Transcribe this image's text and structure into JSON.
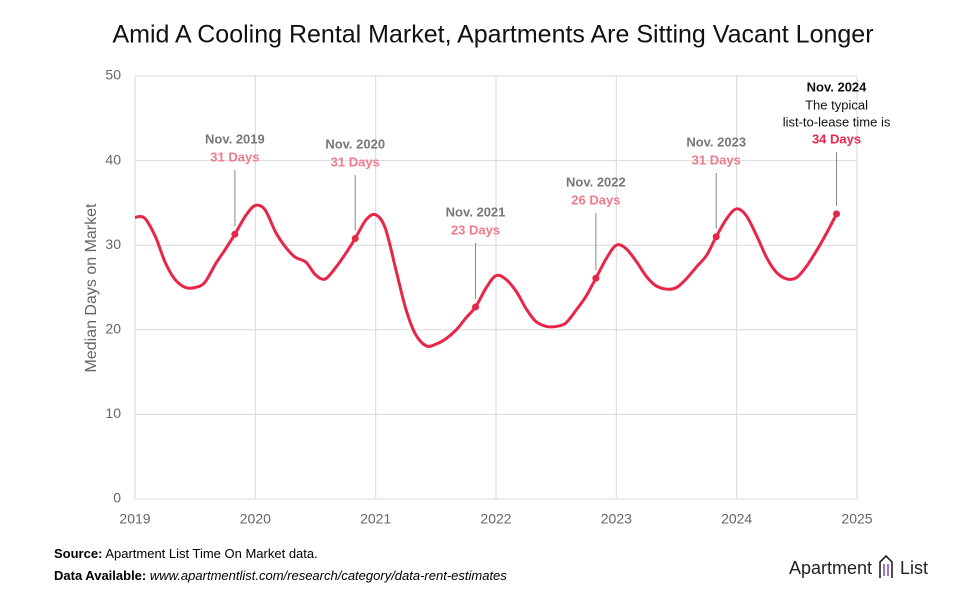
{
  "chart_data": {
    "type": "line",
    "title": "Amid A Cooling Rental Market, Apartments Are Sitting Vacant Longer",
    "y_label": "Median Days on Market",
    "x": [
      2019,
      2019.08,
      2019.17,
      2019.25,
      2019.33,
      2019.42,
      2019.5,
      2019.58,
      2019.67,
      2019.75,
      2019.83,
      2019.92,
      2020,
      2020.08,
      2020.17,
      2020.25,
      2020.33,
      2020.42,
      2020.5,
      2020.58,
      2020.67,
      2020.75,
      2020.83,
      2020.92,
      2021,
      2021.08,
      2021.17,
      2021.25,
      2021.33,
      2021.42,
      2021.5,
      2021.58,
      2021.67,
      2021.75,
      2021.83,
      2021.92,
      2022,
      2022.08,
      2022.17,
      2022.25,
      2022.33,
      2022.42,
      2022.5,
      2022.58,
      2022.67,
      2022.75,
      2022.83,
      2022.92,
      2023,
      2023.08,
      2023.17,
      2023.25,
      2023.33,
      2023.42,
      2023.5,
      2023.58,
      2023.67,
      2023.75,
      2023.83,
      2023.92,
      2024,
      2024.08,
      2024.17,
      2024.25,
      2024.33,
      2024.42,
      2024.5,
      2024.58,
      2024.67,
      2024.75,
      2024.83
    ],
    "series": [
      {
        "name": "Median Days on Market",
        "color": "#e8264a",
        "values": [
          33.3,
          33.2,
          31,
          28,
          26,
          25,
          25,
          25.6,
          27.8,
          29.5,
          31.3,
          33.5,
          34.7,
          34.2,
          31.5,
          29.8,
          28.6,
          28,
          26.5,
          26,
          27.4,
          29,
          30.8,
          33,
          33.6,
          32,
          27,
          22.5,
          19.5,
          18.1,
          18.3,
          18.9,
          20,
          21.4,
          22.7,
          25,
          26.4,
          26,
          24.5,
          22.5,
          21,
          20.4,
          20.4,
          20.8,
          22.4,
          24,
          26.1,
          28.5,
          30,
          29.6,
          28,
          26.3,
          25.2,
          24.8,
          25,
          26,
          27.5,
          28.8,
          31,
          33.2,
          34.3,
          33.5,
          31,
          28.5,
          26.8,
          26,
          26.2,
          27.5,
          29.5,
          31.5,
          33.7
        ]
      }
    ],
    "annotations": [
      {
        "x": 2019.83,
        "title": "Nov. 2019",
        "label": "31 Days"
      },
      {
        "x": 2020.83,
        "title": "Nov. 2020",
        "label": "31 Days"
      },
      {
        "x": 2021.83,
        "title": "Nov. 2021",
        "label": "23 Days"
      },
      {
        "x": 2022.83,
        "title": "Nov. 2022",
        "label": "26 Days"
      },
      {
        "x": 2023.83,
        "title": "Nov. 2023",
        "label": "31 Days"
      },
      {
        "x": 2024.83,
        "title": "Nov. 2024",
        "text": [
          "The typical",
          "list-to-lease time is"
        ],
        "label": "34 Days"
      }
    ],
    "xlim": [
      2019,
      2025
    ],
    "xticks": [
      2019,
      2020,
      2021,
      2022,
      2023,
      2024,
      2025
    ],
    "ylim": [
      0,
      50
    ],
    "yticks": [
      0,
      10,
      20,
      30,
      40,
      50
    ],
    "grid": true
  },
  "footer": {
    "source_label": "Source:",
    "source": "Apartment List Time On Market data.",
    "data_label": "Data Available:",
    "data": "www.apartmentlist.com/research/category/data-rent-estimates",
    "logo": [
      "Apartment",
      "List"
    ]
  }
}
